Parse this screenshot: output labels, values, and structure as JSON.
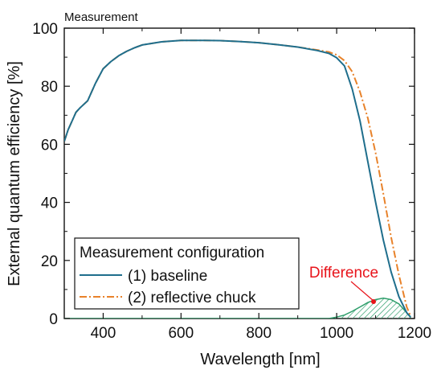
{
  "chart_data": {
    "type": "line",
    "title": "Measurement",
    "xlabel": "Wavelength [nm]",
    "ylabel": "External quantum efficiency [%]",
    "xlim": [
      300,
      1200
    ],
    "ylim": [
      0,
      100
    ],
    "xticks": [
      400,
      600,
      800,
      1000,
      1200
    ],
    "yticks": [
      0,
      20,
      40,
      60,
      80,
      100
    ],
    "grid": false,
    "legend": {
      "title": "Measurement configuration",
      "placement": "bottom-left"
    },
    "series": [
      {
        "name": "(1) baseline",
        "color": "#1f6e8c",
        "style": "solid",
        "x": [
          300,
          310,
          320,
          330,
          340,
          360,
          380,
          400,
          420,
          440,
          460,
          480,
          500,
          550,
          600,
          650,
          700,
          750,
          800,
          850,
          900,
          950,
          980,
          1000,
          1020,
          1040,
          1060,
          1080,
          1100,
          1120,
          1140,
          1160,
          1180,
          1190
        ],
        "y": [
          61,
          65,
          68,
          71,
          72.5,
          75,
          81,
          86,
          88.5,
          90.5,
          92,
          93.2,
          94.2,
          95.3,
          95.8,
          95.8,
          95.7,
          95.4,
          95,
          94.3,
          93.5,
          92.3,
          91.3,
          89.8,
          87,
          79,
          68,
          54,
          40,
          27,
          16,
          7.5,
          2,
          0.5
        ]
      },
      {
        "name": "(2) reflective chuck",
        "color": "#e8822a",
        "style": "dashdot",
        "x": [
          300,
          310,
          320,
          330,
          340,
          360,
          380,
          400,
          420,
          440,
          460,
          480,
          500,
          550,
          600,
          650,
          700,
          750,
          800,
          850,
          900,
          950,
          980,
          1000,
          1020,
          1040,
          1060,
          1080,
          1100,
          1120,
          1140,
          1160,
          1180,
          1190
        ],
        "y": [
          61,
          65,
          68,
          71,
          72.5,
          75,
          81,
          86,
          88.5,
          90.5,
          92,
          93.2,
          94.2,
          95.3,
          95.8,
          95.8,
          95.7,
          95.4,
          95,
          94.3,
          93.5,
          92.5,
          91.8,
          90.8,
          88.8,
          85,
          78,
          69,
          57,
          43,
          28,
          15,
          4,
          0.8
        ]
      }
    ],
    "difference_area": {
      "label": "Difference",
      "label_color": "#e8141b",
      "fill_color": "#2e9e6b",
      "x": [
        980,
        1000,
        1020,
        1040,
        1060,
        1080,
        1100,
        1120,
        1140,
        1160,
        1180,
        1190
      ],
      "y": [
        0,
        0.5,
        1.2,
        2.5,
        4,
        5.5,
        6.5,
        7,
        6.5,
        5,
        2,
        0.3
      ]
    }
  }
}
